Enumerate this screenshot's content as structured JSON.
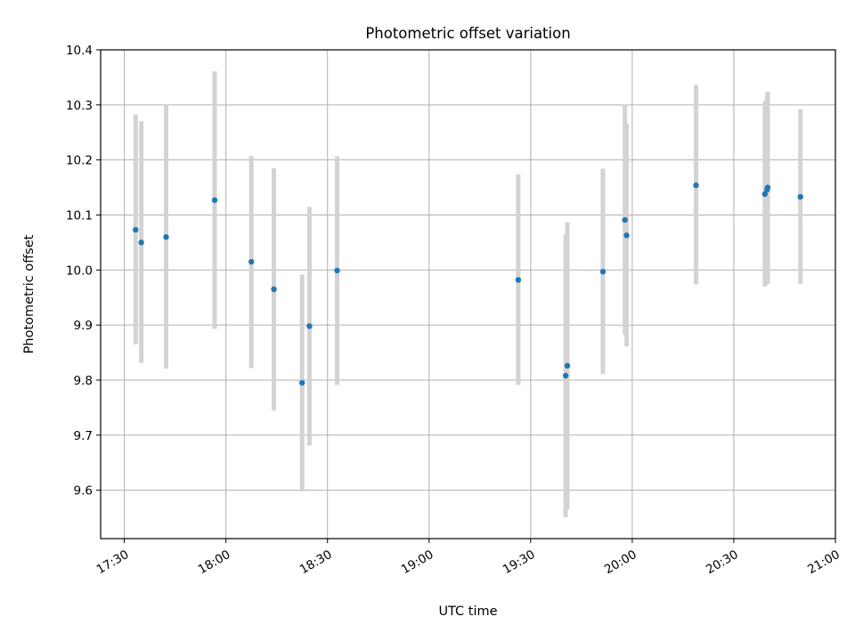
{
  "chart_data": {
    "type": "scatter",
    "title": "Photometric offset variation",
    "xlabel": "UTC time",
    "ylabel": "Photometric offset",
    "x_ticks": [
      "17:30",
      "18:00",
      "18:30",
      "19:00",
      "19:30",
      "20:00",
      "20:30",
      "21:00"
    ],
    "y_ticks": [
      "9.6",
      "9.7",
      "9.8",
      "9.9",
      "10.0",
      "10.1",
      "10.2",
      "10.3",
      "10.4"
    ],
    "xlim": [
      "17:23",
      "21:00"
    ],
    "ylim": [
      9.512,
      10.4
    ],
    "grid": true,
    "point_color": "#1f77b4",
    "errorbar_color": "#d3d3d3",
    "series": [
      {
        "points": [
          {
            "x": "17:33:20",
            "y": 10.073,
            "err_low": 9.865,
            "err_high": 10.283
          },
          {
            "x": "17:35:00",
            "y": 10.05,
            "err_low": 9.831,
            "err_high": 10.27
          },
          {
            "x": "17:42:20",
            "y": 10.06,
            "err_low": 9.821,
            "err_high": 10.3
          },
          {
            "x": "17:56:40",
            "y": 10.127,
            "err_low": 9.893,
            "err_high": 10.361
          },
          {
            "x": "18:07:30",
            "y": 10.015,
            "err_low": 9.822,
            "err_high": 10.207
          },
          {
            "x": "18:14:10",
            "y": 9.965,
            "err_low": 9.745,
            "err_high": 10.185
          },
          {
            "x": "18:22:30",
            "y": 9.795,
            "err_low": 9.598,
            "err_high": 9.992
          },
          {
            "x": "18:24:40",
            "y": 9.898,
            "err_low": 9.681,
            "err_high": 10.115
          },
          {
            "x": "18:32:50",
            "y": 9.999,
            "err_low": 9.791,
            "err_high": 10.207
          },
          {
            "x": "19:26:20",
            "y": 9.982,
            "err_low": 9.791,
            "err_high": 10.174
          },
          {
            "x": "19:40:20",
            "y": 9.808,
            "err_low": 9.551,
            "err_high": 10.065
          },
          {
            "x": "19:40:50",
            "y": 9.826,
            "err_low": 9.565,
            "err_high": 10.087
          },
          {
            "x": "19:51:20",
            "y": 9.997,
            "err_low": 9.811,
            "err_high": 10.184
          },
          {
            "x": "19:57:50",
            "y": 10.091,
            "err_low": 9.882,
            "err_high": 10.301
          },
          {
            "x": "19:58:20",
            "y": 10.063,
            "err_low": 9.861,
            "err_high": 10.266
          },
          {
            "x": "20:18:50",
            "y": 10.154,
            "err_low": 9.974,
            "err_high": 10.336
          },
          {
            "x": "20:39:10",
            "y": 10.138,
            "err_low": 9.97,
            "err_high": 10.307
          },
          {
            "x": "20:39:50",
            "y": 10.146,
            "err_low": 9.974,
            "err_high": 10.319
          },
          {
            "x": "20:40:00",
            "y": 10.15,
            "err_low": 9.976,
            "err_high": 10.324
          },
          {
            "x": "20:49:40",
            "y": 10.133,
            "err_low": 9.975,
            "err_high": 10.292
          }
        ]
      }
    ]
  }
}
